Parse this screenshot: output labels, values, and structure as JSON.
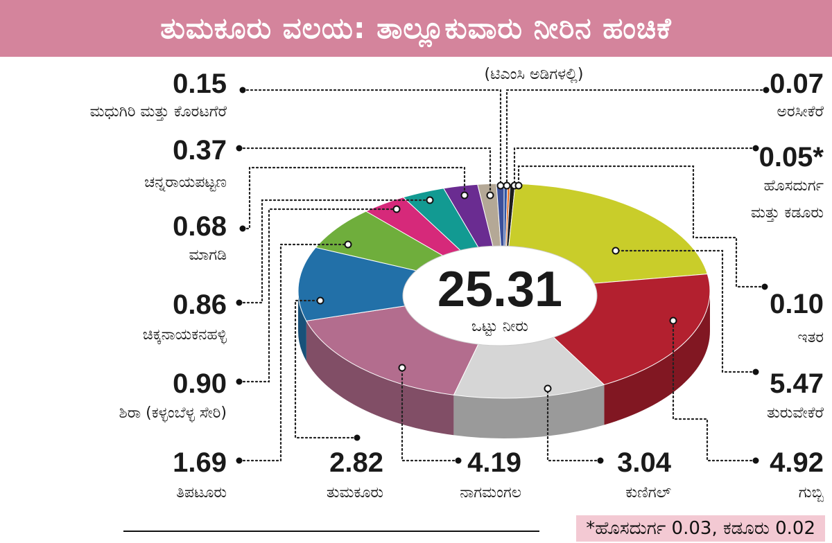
{
  "title": "ತುಮಕೂರು ವಲಯ: ತಾಲ್ಲೂಕುವಾರು ನೀರಿನ ಹಂಚಿಕೆ",
  "subtitle": "(ಟಿಎಂಸಿ ಅಡಿಗಳಲ್ಲಿ)",
  "footnote": "*ಹೊಸದುರ್ಗ 0.03, ಕಡೂರು 0.02",
  "chart_data": {
    "type": "pie",
    "center_value": "25.31",
    "center_label": "ಒಟ್ಟು ನೀರು",
    "slices": [
      {
        "label": "ಅರಸೀಕೆರೆ",
        "value": 0.07,
        "display": "0.07",
        "color": "#2f55a4"
      },
      {
        "label": "ಹೊಸದುರ್ಗ ಮತ್ತು ಕಡೂರು",
        "value": 0.05,
        "display": "0.05*",
        "color": "#e36c1e"
      },
      {
        "label": "ಇತರ",
        "value": 0.1,
        "display": "0.10",
        "color": "#1e1e1e"
      },
      {
        "label": "ತುರುವೇಕೆರೆ",
        "value": 5.47,
        "display": "5.47",
        "color": "#c9cd2a"
      },
      {
        "label": "ಗುಬ್ಬಿ",
        "value": 4.92,
        "display": "4.92",
        "color": "#b3202f"
      },
      {
        "label": "ಕುಣಿಗಲ್",
        "value": 3.04,
        "display": "3.04",
        "color": "#d6d6d6"
      },
      {
        "label": "ನಾಗಮಂಗಲ",
        "value": 4.19,
        "display": "4.19",
        "color": "#b36d8e"
      },
      {
        "label": "ತುಮಕೂರು",
        "value": 2.82,
        "display": "2.82",
        "color": "#2270a8"
      },
      {
        "label": "ತಿಪಟೂರು",
        "value": 1.69,
        "display": "1.69",
        "color": "#6fae3c"
      },
      {
        "label": "ಶಿರಾ (ಕಳ್ಳಂಬೆಳ್ಳ ಸೇರಿ)",
        "value": 0.9,
        "display": "0.90",
        "color": "#d6297a"
      },
      {
        "label": "ಚಿಕ್ಕನಾಯಕನಹಳ್ಳಿ",
        "value": 0.86,
        "display": "0.86",
        "color": "#129a92"
      },
      {
        "label": "ಮಾಗಡಿ",
        "value": 0.68,
        "display": "0.68",
        "color": "#6a2c91"
      },
      {
        "label": "ಚನ್ನರಾಯಪಟ್ಟಣ",
        "value": 0.37,
        "display": "0.37",
        "color": "#b4a896"
      },
      {
        "label": "ಮಧುಗಿರಿ ಮತ್ತು ಕೊರಟಗೆರೆ",
        "value": 0.15,
        "display": "0.15",
        "color": "#3b4f9a"
      }
    ]
  }
}
